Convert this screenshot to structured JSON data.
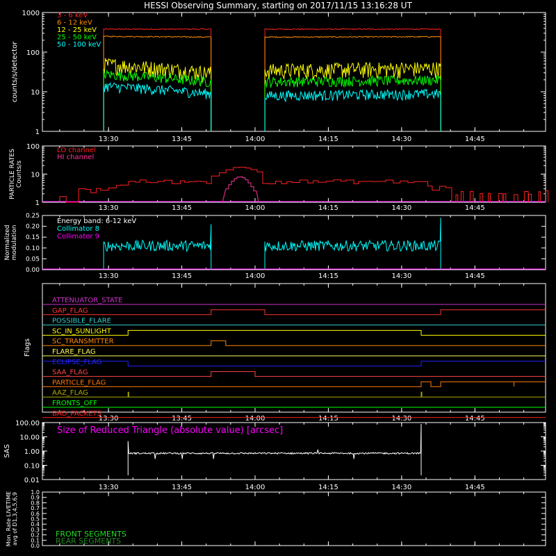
{
  "title": "HESSI Observing Summary, starting on 2017/11/15 13:16:28 UT",
  "x_ticks": [
    "13:30",
    "13:45",
    "14:00",
    "14:15",
    "14:30",
    "14:45"
  ],
  "chart_data": [
    {
      "id": "panel-counts",
      "type": "line",
      "ylabel": "counts/s/detector",
      "y_scale": "log",
      "ylim": [
        1,
        1000
      ],
      "y_tick_labels": [
        "1",
        "10",
        "100",
        "1000"
      ],
      "legend": [
        {
          "name": "3 - 6 keV",
          "color": "#ff2020"
        },
        {
          "name": "6 - 12 keV",
          "color": "#ff8c00"
        },
        {
          "name": "12 - 25 keV",
          "color": "#ffff00"
        },
        {
          "name": "25 - 50 keV",
          "color": "#00ff00"
        },
        {
          "name": "50 - 100 keV",
          "color": "#00ffff"
        }
      ],
      "segments": [
        {
          "start": "13:29",
          "end": "13:51"
        },
        {
          "start": "14:02",
          "end": "14:38"
        }
      ],
      "series": [
        {
          "name": "3 - 6 keV",
          "color": "#ff2020",
          "values": [
            [
              380,
              380
            ],
            [
              380,
              380
            ]
          ]
        },
        {
          "name": "6 - 12 keV",
          "color": "#ff8c00",
          "values": [
            [
              250,
              240
            ],
            [
              240,
              245
            ]
          ]
        },
        {
          "name": "12 - 25 keV",
          "color": "#ffff00",
          "values": [
            [
              50,
              30
            ],
            [
              35,
              40
            ]
          ]
        },
        {
          "name": "25 - 50 keV",
          "color": "#00ff00",
          "values": [
            [
              28,
              18
            ],
            [
              18,
              20
            ]
          ]
        },
        {
          "name": "50 - 100 keV",
          "color": "#00ffff",
          "values": [
            [
              14,
              9
            ],
            [
              8,
              9
            ]
          ]
        }
      ]
    },
    {
      "id": "panel-particles",
      "type": "line",
      "ylabel": [
        "PARTICLE RATES",
        "Counts/s"
      ],
      "y_scale": "log",
      "ylim": [
        1,
        100
      ],
      "y_tick_labels": [
        "1",
        "10",
        "100"
      ],
      "legend": [
        {
          "name": "LO channel",
          "color": "#ff2020"
        },
        {
          "name": "HI channel",
          "color": "#ff3399"
        }
      ]
    },
    {
      "id": "panel-modulation",
      "type": "line",
      "ylabel": [
        "Normalized",
        "modulation"
      ],
      "ylim": [
        0,
        0.25
      ],
      "y_tick_labels": [
        "0.00",
        "0.05",
        "0.10",
        "0.15",
        "0.20",
        "0.25"
      ],
      "annotation": "Energy band: 6-12 keV",
      "legend": [
        {
          "name": "Collimator 8",
          "color": "#00ffff"
        },
        {
          "name": "Collimator 9",
          "color": "#ff00ff"
        }
      ],
      "collimator8_level": 0.11
    },
    {
      "id": "panel-flags",
      "type": "line",
      "ylabel": "Flags",
      "flags": [
        {
          "name": "ATTENUATOR_STATE",
          "color": "#cc33cc"
        },
        {
          "name": "GAP_FLAG",
          "color": "#ff3333"
        },
        {
          "name": "POSSIBLE_FLARE",
          "color": "#33cccc"
        },
        {
          "name": "SC_IN_SUNLIGHT",
          "color": "#ffff00"
        },
        {
          "name": "SC_TRANSMITTER",
          "color": "#ff8800"
        },
        {
          "name": "FLARE_FLAG",
          "color": "#ffff55"
        },
        {
          "name": "ECLIPSE_FLAG",
          "color": "#2222ff"
        },
        {
          "name": "SAA_FLAG",
          "color": "#ff4444"
        },
        {
          "name": "PARTICLE_FLAG",
          "color": "#ff7700"
        },
        {
          "name": "AAZ_FLAG",
          "color": "#aaaa00"
        },
        {
          "name": "FRONTS_OFF",
          "color": "#00ff00"
        },
        {
          "name": "BAD_PACKETS",
          "color": "#ff2222"
        }
      ]
    },
    {
      "id": "panel-sas",
      "type": "line",
      "ylabel": "SAS",
      "y_scale": "log",
      "ylim": [
        0.01,
        100
      ],
      "y_tick_labels": [
        "0.01",
        "0.10",
        "1.00",
        "10.00",
        "100.00"
      ],
      "annotation": "Size of Reduced Triangle (absolute value) [arcsec]",
      "annotation_color": "#ff00ff",
      "series": [
        {
          "name": "",
          "color": "#ffffff",
          "start": "13:34",
          "end": "14:34",
          "level": 0.7
        }
      ]
    },
    {
      "id": "panel-livetime",
      "type": "line",
      "ylabel": [
        "Mon. Rate LIVETIME",
        "avg of D1,3,4,5,6,9"
      ],
      "ylim": [
        0,
        1
      ],
      "y_tick_labels": [
        "0.0",
        "0.1",
        "0.2",
        "0.3",
        "0.4",
        "0.5",
        "0.6",
        "0.7",
        "0.8",
        "0.9",
        "1.0"
      ],
      "legend": [
        {
          "name": "FRONT SEGMENTS",
          "color": "#22dd22"
        },
        {
          "name": "REAR SEGMENTS",
          "color": "#228822"
        }
      ]
    }
  ]
}
